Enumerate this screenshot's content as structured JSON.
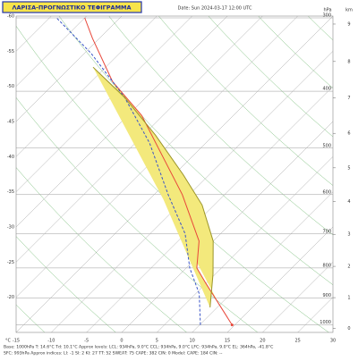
{
  "chart_data": {
    "type": "skewt",
    "title": "ΛΑΡΙΣΑ-ΠΡΟΓΝΩΣΤΙΚΟ ΤΕΦΙΓΡΑΜΜΑ",
    "date": "Date: Sun 2024-03-17 12:00 UTC",
    "x_unit": "°C",
    "y_unit": "hPa",
    "height_unit": "km",
    "xlim": [
      -15,
      30
    ],
    "xticks": [
      -60,
      -55,
      -50,
      -45,
      -40,
      -35,
      -30,
      -25,
      -20,
      -15,
      -10,
      -5,
      0,
      5,
      10,
      15,
      20,
      25,
      30
    ],
    "ylim": [
      1030,
      300
    ],
    "yticks": [
      300,
      400,
      500,
      600,
      700,
      800,
      900,
      1000
    ],
    "height_ticks": [
      0,
      1,
      2,
      3,
      4,
      5,
      6,
      7,
      8,
      9
    ],
    "grid": true,
    "series": [
      {
        "color": "#e8473a",
        "dash": false,
        "pressure": [
          1000,
          925,
          850,
          800,
          720,
          600,
          500,
          440,
          385,
          325,
          300
        ],
        "values": [
          14.6,
          10,
          5,
          1.5,
          -2,
          -11,
          -21,
          -28,
          -37,
          -46,
          -50
        ]
      },
      {
        "color": "#3a55c8",
        "dash": true,
        "pressure": [
          1000,
          885,
          800,
          700,
          600,
          490,
          410,
          345,
          300
        ],
        "values": [
          10.1,
          5.5,
          0.5,
          -5,
          -13,
          -23,
          -33,
          -44,
          -54
        ]
      },
      {
        "color": "#9a9428",
        "dash": false,
        "pressure": [
          934,
          820,
          720,
          625,
          555,
          475,
          410,
          364
        ],
        "values": [
          9.0,
          4.7,
          0,
          -6.7,
          -13.7,
          -23.3,
          -33,
          -41.8
        ]
      }
    ],
    "cape_color": "#f3e97c",
    "footer": [
      "Base: 1000hPa   T: 14.6°C   Td: 10.1°C       Approx levels:   LCL: 934hPa, 9.0°C     CCL: 934hPa, 9.0°C     LFC: 934hPa, 9.0°C     EL: 364hPa, -41.8°C",
      "SFC: 993hPa       Approx indices:  LI: -1   SI: 2   KI: 27   TT: 52   SWEAT: 75     CAPE: 382  CIN: 0        Model: CAPE: 184  CIN: --"
    ]
  }
}
